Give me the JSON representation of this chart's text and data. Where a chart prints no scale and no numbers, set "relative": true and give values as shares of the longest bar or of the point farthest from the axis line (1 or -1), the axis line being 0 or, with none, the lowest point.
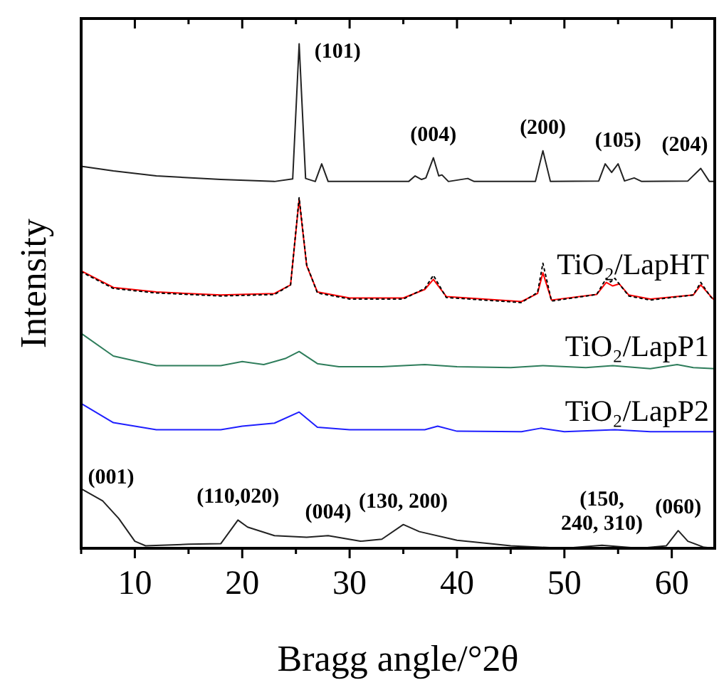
{
  "chart_data": {
    "type": "line",
    "relative": true,
    "xlabel": "Bragg angle/°2θ",
    "ylabel": "Intensity",
    "xlim": [
      5,
      64
    ],
    "xticks": [
      {
        "value": 5,
        "label": null
      },
      10,
      {
        "value": 15,
        "label": null
      },
      20,
      {
        "value": 25,
        "label": null
      },
      30,
      {
        "value": 35,
        "label": null
      },
      40,
      {
        "value": 45,
        "label": null
      },
      50,
      {
        "value": 55,
        "label": null
      },
      60
    ],
    "legend": false,
    "grid": false,
    "marker": "none",
    "series": [
      {
        "color": "#222222",
        "x": [
          5,
          8,
          12,
          18,
          23,
          24.7,
          25.3,
          25.9,
          26.8,
          27.4,
          28,
          35.5,
          36.1,
          36.7,
          37.1,
          37.8,
          38.3,
          38.6,
          39.2,
          41,
          41.6,
          47.3,
          48.0,
          48.7,
          53.2,
          53.8,
          54.4,
          55.0,
          55.6,
          56.5,
          57.2,
          61.5,
          62.7,
          63.5,
          64
        ],
        "values": [
          0.757,
          0.748,
          0.738,
          0.731,
          0.727,
          0.732,
          1.0,
          0.733,
          0.727,
          0.762,
          0.727,
          0.727,
          0.738,
          0.731,
          0.734,
          0.774,
          0.738,
          0.74,
          0.727,
          0.733,
          0.727,
          0.727,
          0.788,
          0.727,
          0.728,
          0.762,
          0.745,
          0.762,
          0.728,
          0.734,
          0.727,
          0.728,
          0.753,
          0.727,
          0.727
        ]
      },
      {
        "name": "TiO₂/LapHT",
        "color": "#ff0000",
        "x": [
          5,
          8,
          12,
          18,
          23,
          24.5,
          25.3,
          26,
          27,
          30,
          35,
          37,
          37.8,
          39,
          46,
          47.5,
          48,
          48.8,
          53,
          53.9,
          54.5,
          55.1,
          56,
          58,
          62,
          62.7,
          63.6,
          64
        ],
        "values": [
          0.55,
          0.517,
          0.508,
          0.502,
          0.505,
          0.522,
          0.692,
          0.56,
          0.508,
          0.496,
          0.496,
          0.513,
          0.533,
          0.499,
          0.489,
          0.505,
          0.546,
          0.492,
          0.503,
          0.527,
          0.52,
          0.524,
          0.502,
          0.494,
          0.502,
          0.522,
          0.5,
          0.491
        ]
      },
      {
        "color": "#000000",
        "line_style": "dotted",
        "x": [
          5,
          8,
          12,
          18,
          23,
          24.5,
          25.3,
          26,
          27,
          30,
          35,
          37,
          37.8,
          39,
          46,
          47.5,
          48,
          48.8,
          53,
          53.9,
          54.3,
          54.7,
          56,
          58,
          62,
          62.7,
          63.6,
          64
        ],
        "values": [
          0.548,
          0.515,
          0.506,
          0.5,
          0.503,
          0.522,
          0.695,
          0.562,
          0.506,
          0.494,
          0.494,
          0.515,
          0.541,
          0.497,
          0.487,
          0.507,
          0.565,
          0.49,
          0.503,
          0.535,
          0.528,
          0.535,
          0.5,
          0.492,
          0.502,
          0.527,
          0.499,
          0.49
        ]
      },
      {
        "name": "TiO₂/LapP1",
        "color": "#2e7d5b",
        "x": [
          5,
          8,
          12,
          18,
          20,
          22,
          24,
          25.3,
          27,
          29,
          33,
          37,
          40,
          45,
          48,
          52,
          54.5,
          58,
          60.5,
          62,
          64
        ],
        "values": [
          0.426,
          0.381,
          0.362,
          0.362,
          0.37,
          0.364,
          0.376,
          0.39,
          0.366,
          0.36,
          0.36,
          0.364,
          0.36,
          0.358,
          0.362,
          0.358,
          0.362,
          0.356,
          0.364,
          0.358,
          0.356
        ]
      },
      {
        "name": "TiO₂/LapP2",
        "color": "#1f1fff",
        "x": [
          5,
          8,
          12,
          18,
          20,
          23,
          25.3,
          27,
          30,
          37,
          38.2,
          40,
          46,
          47.8,
          50,
          54.7,
          58,
          64
        ],
        "values": [
          0.287,
          0.249,
          0.235,
          0.235,
          0.242,
          0.248,
          0.27,
          0.24,
          0.235,
          0.235,
          0.242,
          0.232,
          0.231,
          0.238,
          0.231,
          0.235,
          0.231,
          0.231
        ]
      },
      {
        "color": "#222222",
        "x": [
          5,
          7,
          8.5,
          10,
          11,
          15,
          18,
          19.6,
          20.5,
          23,
          26,
          28,
          31,
          33,
          35,
          36.5,
          40,
          45,
          50,
          53.5,
          57,
          59.5,
          60.6,
          61.5,
          63,
          64
        ],
        "values": [
          0.118,
          0.094,
          0.059,
          0.014,
          0.005,
          0.008,
          0.009,
          0.056,
          0.042,
          0.025,
          0.022,
          0.025,
          0.014,
          0.018,
          0.047,
          0.033,
          0.016,
          0.005,
          0.0,
          0.006,
          0.0,
          0.005,
          0.035,
          0.014,
          0.002,
          0.0
        ]
      }
    ],
    "annotations": [
      {
        "text": "(101)",
        "x": 25.3,
        "y": 1.0
      },
      {
        "text": "(004)",
        "x": 37.8,
        "y": 0.774
      },
      {
        "text": "(200)",
        "x": 48.0,
        "y": 0.788
      },
      {
        "text": "(105)",
        "x": 55.0,
        "y": 0.762
      },
      {
        "text": "(204)",
        "x": 62.7,
        "y": 0.753
      },
      {
        "text": "(001)",
        "x": 7,
        "y": 0.094
      },
      {
        "text": "(110,020)",
        "x": 19.6,
        "y": 0.056
      },
      {
        "text": "(004)",
        "x": 28,
        "y": 0.025
      },
      {
        "text": "(130, 200)",
        "x": 35,
        "y": 0.047
      },
      {
        "text": "(150,\n240, 310)",
        "x": 53.5,
        "y": 0.006
      },
      {
        "text": "(060)",
        "x": 60.6,
        "y": 0.035
      }
    ]
  }
}
